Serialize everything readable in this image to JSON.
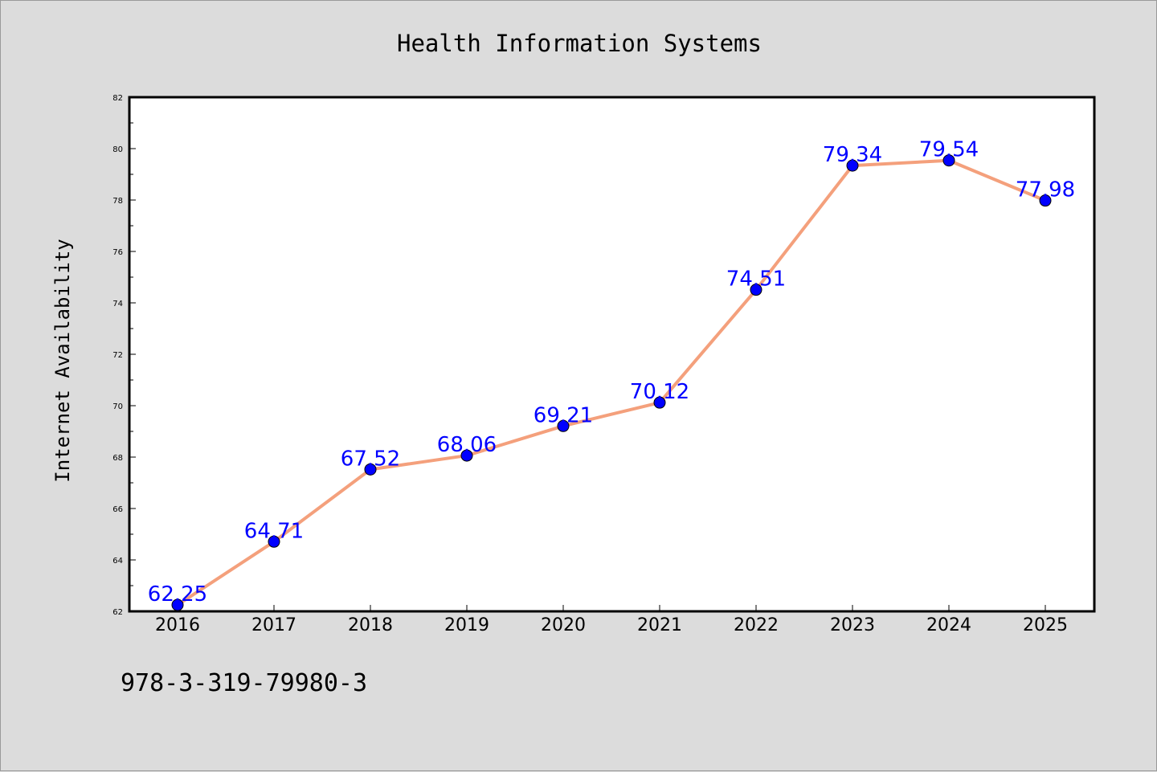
{
  "chart_data": {
    "type": "line",
    "title": "Health Information Systems",
    "xlabel": "",
    "ylabel": "Internet Availability",
    "categories": [
      "2016",
      "2017",
      "2018",
      "2019",
      "2020",
      "2021",
      "2022",
      "2023",
      "2024",
      "2025"
    ],
    "series": [
      {
        "values": [
          62.25,
          64.71,
          67.52,
          68.06,
          69.21,
          70.12,
          74.51,
          79.34,
          79.54,
          77.98
        ],
        "labels": [
          "62.25",
          "64.71",
          "67.52",
          "68.06",
          "69.21",
          "70.12",
          "74.51",
          "79.34",
          "79.54",
          "77.98"
        ],
        "line_color": "#f4a07c",
        "marker_color": "#0000ff"
      }
    ],
    "ylim": [
      62,
      82
    ],
    "yticks": [
      "62",
      "64",
      "66",
      "68",
      "70",
      "72",
      "74",
      "76",
      "78",
      "80",
      "82"
    ],
    "grid": false,
    "legend": "none"
  },
  "footer": {
    "code": "978-3-319-79980-3"
  }
}
